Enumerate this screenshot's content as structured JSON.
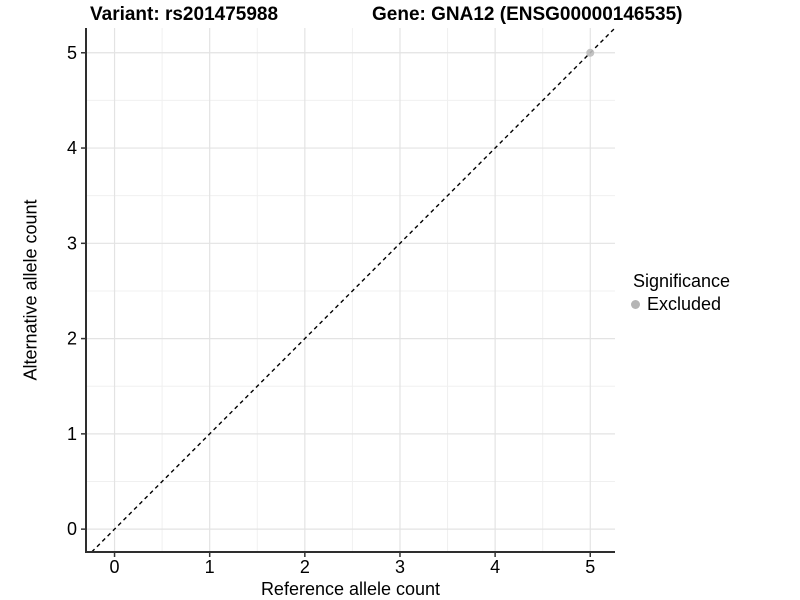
{
  "chart_data": {
    "type": "scatter",
    "title_left": "Variant: rs201475988",
    "title_right": "Gene: GNA12 (ENSG00000146535)",
    "xlabel": "Reference allele count",
    "ylabel": "Alternative allele count",
    "xlim": [
      -0.3,
      5.26
    ],
    "ylim": [
      -0.24,
      5.26
    ],
    "xticks": [
      0,
      1,
      2,
      3,
      4,
      5
    ],
    "yticks": [
      0,
      1,
      2,
      3,
      4,
      5
    ],
    "xticks_minor": [
      0.5,
      1.5,
      2.5,
      3.5,
      4.5
    ],
    "yticks_minor": [
      0.5,
      1.5,
      2.5,
      3.5,
      4.5
    ],
    "grid": "major and minor gridlines on white panel",
    "reference_line": {
      "equation": "y = x",
      "style": "dashed",
      "color": "#000000"
    },
    "series": [
      {
        "name": "Excluded",
        "color": "#bdbdbd",
        "points": [
          [
            5,
            5
          ]
        ]
      }
    ],
    "legend": {
      "title": "Significance",
      "position": "right",
      "entries": [
        {
          "label": "Excluded",
          "color": "#b5b5b5",
          "marker": "circle"
        }
      ]
    }
  },
  "colors": {
    "background": "#ffffff",
    "axis_line": "#2e2e2e",
    "tick_mark": "#333333",
    "grid_major": "#e3e3e3",
    "grid_minor": "#f0f0f0",
    "text": "#000000",
    "identity_line": "#000000",
    "point": "#bdbdbd"
  }
}
